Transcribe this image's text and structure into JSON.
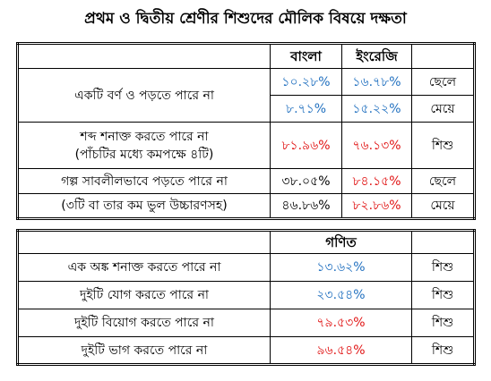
{
  "title": "প্রথম ও দ্বিতীয় শ্রেণীর শিশুদের মৌলিক বিষয়ে দক্ষতা",
  "table1": {
    "header": [
      "বাংলা",
      "ইংরেজি"
    ],
    "sections": [
      {
        "labels": [
          [
            "একটি বর্ণ ও পড়তে পারে না"
          ]
        ],
        "rows": [
          {
            "values": [
              "১০.২৮%",
              "১৬.৭৮%"
            ],
            "colors": [
              "#1f6fbf",
              "#1f6fbf"
            ],
            "group": "ছেলে"
          },
          {
            "values": [
              "৮.৭১%",
              "১৫.২২%"
            ],
            "colors": [
              "#1f6fbf",
              "#1f6fbf"
            ],
            "group": "মেয়ে"
          }
        ]
      },
      {
        "labels": [
          [
            "শব্দ শনাক্ত করতে পারে না",
            "(পাঁচটির মধ্যে কমপক্ষে ৪টি)"
          ]
        ],
        "rows": [
          {
            "values": [
              "৮১.৯৬%",
              "৭৬.১৩%"
            ],
            "colors": [
              "#e01010",
              "#e01010"
            ],
            "group": "শিশু"
          }
        ]
      },
      {
        "labels": [
          [
            "গল্প সাবলীলভাবে পড়তে পারে না"
          ],
          [
            "(৩টি বা তার কম ভুল উচ্চারণসহ)"
          ]
        ],
        "rows": [
          {
            "values": [
              "৩৮.০৫%",
              "৮৪.১৫%"
            ],
            "colors": [
              "#000000",
              "#e01010"
            ],
            "group": "ছেলে"
          },
          {
            "values": [
              "৪৬.৮৬%",
              "৮২.৮৬%"
            ],
            "colors": [
              "#000000",
              "#e01010"
            ],
            "group": "মেয়ে"
          }
        ]
      }
    ]
  },
  "table2": {
    "header": "গণিত",
    "rows": [
      {
        "label": "এক অঙ্ক শনাক্ত করতে পারে না",
        "value": "১৩.৬২%",
        "color": "#1f6fbf",
        "group": "শিশু"
      },
      {
        "label": "দুইটি যোগ করতে পারে না",
        "value": "২৩.৫৪%",
        "color": "#1f6fbf",
        "group": "শিশু"
      },
      {
        "label": "দুইটি বিয়োগ করতে পারে না",
        "value": "৭৯.৫৩%",
        "color": "#e01010",
        "group": "শিশু"
      },
      {
        "label": "দুইটি ভাগ করতে পারে না",
        "value": "৯৬.৫৪%",
        "color": "#e01010",
        "group": "শিশু"
      }
    ]
  }
}
